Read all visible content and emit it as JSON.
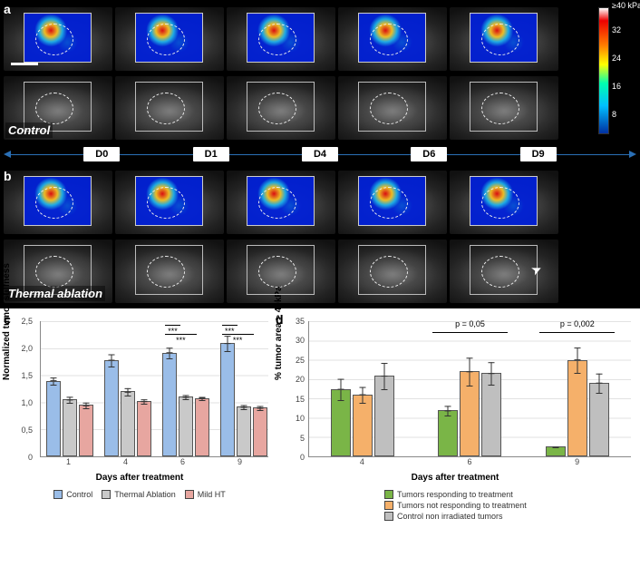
{
  "panels": {
    "a": {
      "label": "a",
      "group_label": "Control"
    },
    "b": {
      "label": "b",
      "group_label": "Thermal ablation"
    },
    "timepoints": [
      "D0",
      "D1",
      "D4",
      "D6",
      "D9"
    ]
  },
  "colorbar": {
    "top_label": "≥40 kPa",
    "ticks": [
      {
        "label": "32",
        "pos_pct": 18
      },
      {
        "label": "24",
        "pos_pct": 40
      },
      {
        "label": "16",
        "pos_pct": 62
      },
      {
        "label": "8",
        "pos_pct": 84
      }
    ]
  },
  "chart_c": {
    "label": "c",
    "type": "bar",
    "x_title": "Days after treatment",
    "y_title": "Normalized tumor stiffness",
    "y_min": 0,
    "y_max": 2.5,
    "y_tick_step": 0.5,
    "categories": [
      "1",
      "4",
      "6",
      "9"
    ],
    "series": [
      {
        "name": "Control",
        "color": "#9abde8",
        "values": [
          1.4,
          1.78,
          1.92,
          2.1
        ],
        "err": [
          0.15,
          0.18,
          0.15,
          0.18
        ]
      },
      {
        "name": "Thermal Ablation",
        "color": "#c9c9c9",
        "values": [
          1.05,
          1.2,
          1.1,
          0.92
        ],
        "err": [
          0.15,
          0.15,
          0.1,
          0.12
        ]
      },
      {
        "name": "Mild HT",
        "color": "#e7a6a0",
        "values": [
          0.95,
          1.02,
          1.08,
          0.9
        ],
        "err": [
          0.15,
          0.12,
          0.1,
          0.12
        ]
      }
    ],
    "significance": [
      {
        "group_index": 2,
        "pairs": [
          [
            0,
            1
          ],
          [
            0,
            2
          ]
        ],
        "label": "***"
      },
      {
        "group_index": 3,
        "pairs": [
          [
            0,
            1
          ],
          [
            0,
            2
          ]
        ],
        "label": "***"
      }
    ]
  },
  "chart_d": {
    "label": "d",
    "type": "bar",
    "x_title": "Days after treatment",
    "y_title": "% tumor area > 40kPa",
    "y_min": 0,
    "y_max": 35,
    "y_tick_step": 5,
    "categories": [
      "4",
      "6",
      "9"
    ],
    "series": [
      {
        "name": "Tumors responding to treatment",
        "color": "#7ab547",
        "values": [
          17.5,
          12.0,
          2.5
        ],
        "err": [
          6.0,
          4.0,
          1.5
        ]
      },
      {
        "name": "Tumors not responding to treatment",
        "color": "#f5b06a",
        "values": [
          16.0,
          22.0,
          25.0
        ],
        "err": [
          5.0,
          6.0,
          5.0
        ]
      },
      {
        "name": "Control non irradiated tumors",
        "color": "#bfbfbf",
        "values": [
          21.0,
          21.5,
          19.0
        ],
        "err": [
          6.0,
          5.0,
          5.0
        ]
      }
    ],
    "significance": [
      {
        "group_index": 1,
        "between": [
          0,
          2
        ],
        "label": "p = 0,05"
      },
      {
        "group_index": 2,
        "between": [
          0,
          2
        ],
        "label": "p = 0,002"
      }
    ]
  }
}
